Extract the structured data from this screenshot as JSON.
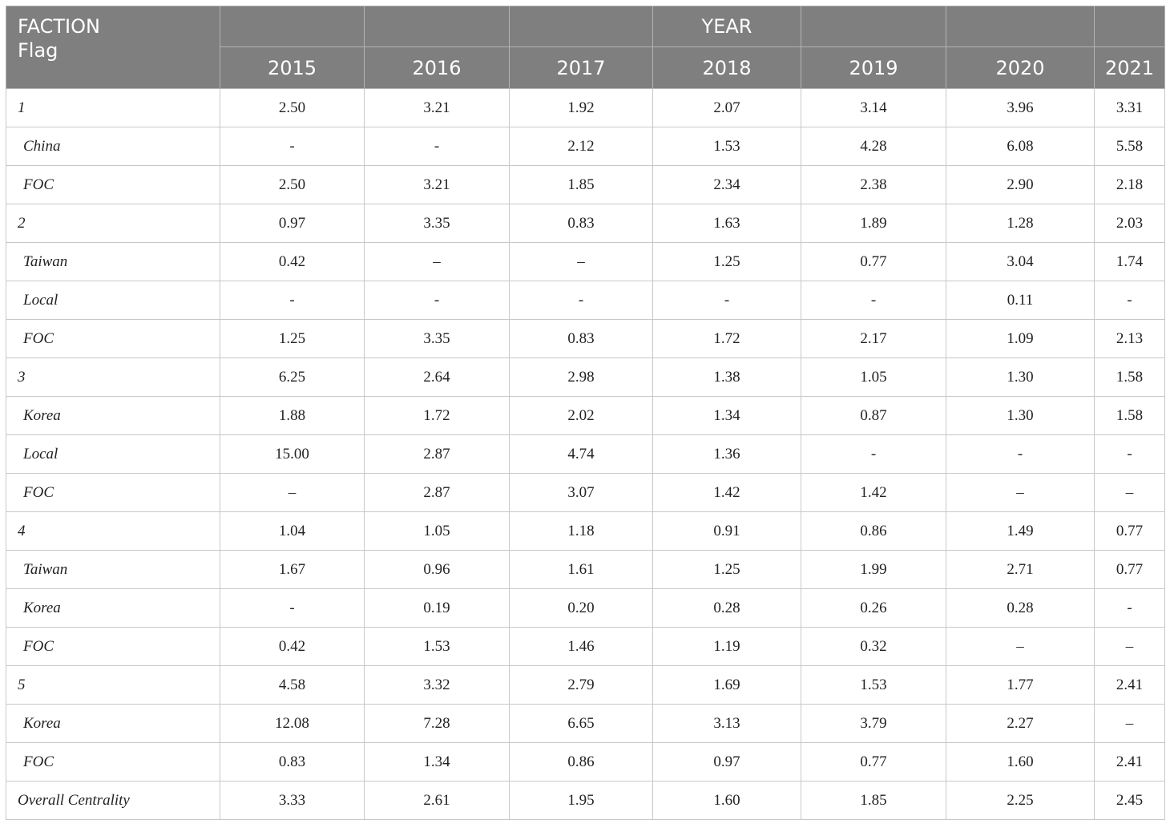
{
  "header": {
    "corner_line1": "FACTION",
    "corner_line2": "Flag",
    "group_label": "YEAR",
    "years": [
      "2015",
      "2016",
      "2017",
      "2018",
      "2019",
      "2020",
      "2021"
    ]
  },
  "rows": [
    {
      "label": "1",
      "type": "faction",
      "values": [
        "2.50",
        "3.21",
        "1.92",
        "2.07",
        "3.14",
        "3.96",
        "3.31"
      ]
    },
    {
      "label": "China",
      "type": "flag",
      "values": [
        "-",
        "-",
        "2.12",
        "1.53",
        "4.28",
        "6.08",
        "5.58"
      ]
    },
    {
      "label": "FOC",
      "type": "flag",
      "values": [
        "2.50",
        "3.21",
        "1.85",
        "2.34",
        "2.38",
        "2.90",
        "2.18"
      ]
    },
    {
      "label": "2",
      "type": "faction",
      "values": [
        "0.97",
        "3.35",
        "0.83",
        "1.63",
        "1.89",
        "1.28",
        "2.03"
      ]
    },
    {
      "label": "Taiwan",
      "type": "flag",
      "values": [
        "0.42",
        "–",
        "–",
        "1.25",
        "0.77",
        "3.04",
        "1.74"
      ]
    },
    {
      "label": "Local",
      "type": "flag",
      "values": [
        "-",
        "-",
        "-",
        "-",
        "-",
        "0.11",
        "-"
      ]
    },
    {
      "label": "FOC",
      "type": "flag",
      "values": [
        "1.25",
        "3.35",
        "0.83",
        "1.72",
        "2.17",
        "1.09",
        "2.13"
      ]
    },
    {
      "label": "3",
      "type": "faction",
      "values": [
        "6.25",
        "2.64",
        "2.98",
        "1.38",
        "1.05",
        "1.30",
        "1.58"
      ]
    },
    {
      "label": "Korea",
      "type": "flag",
      "values": [
        "1.88",
        "1.72",
        "2.02",
        "1.34",
        "0.87",
        "1.30",
        "1.58"
      ]
    },
    {
      "label": "Local",
      "type": "flag",
      "values": [
        "15.00",
        "2.87",
        "4.74",
        "1.36",
        "-",
        "-",
        "-"
      ]
    },
    {
      "label": "FOC",
      "type": "flag",
      "values": [
        "–",
        "2.87",
        "3.07",
        "1.42",
        "1.42",
        "–",
        "–"
      ]
    },
    {
      "label": "4",
      "type": "faction",
      "values": [
        "1.04",
        "1.05",
        "1.18",
        "0.91",
        "0.86",
        "1.49",
        "0.77"
      ]
    },
    {
      "label": "Taiwan",
      "type": "flag",
      "values": [
        "1.67",
        "0.96",
        "1.61",
        "1.25",
        "1.99",
        "2.71",
        "0.77"
      ]
    },
    {
      "label": "Korea",
      "type": "flag",
      "values": [
        "-",
        "0.19",
        "0.20",
        "0.28",
        "0.26",
        "0.28",
        "-"
      ]
    },
    {
      "label": "FOC",
      "type": "flag",
      "values": [
        "0.42",
        "1.53",
        "1.46",
        "1.19",
        "0.32",
        "–",
        "–"
      ]
    },
    {
      "label": "5",
      "type": "faction",
      "values": [
        "4.58",
        "3.32",
        "2.79",
        "1.69",
        "1.53",
        "1.77",
        "2.41"
      ]
    },
    {
      "label": "Korea",
      "type": "flag",
      "values": [
        "12.08",
        "7.28",
        "6.65",
        "3.13",
        "3.79",
        "2.27",
        "–"
      ]
    },
    {
      "label": "FOC",
      "type": "flag",
      "values": [
        "0.83",
        "1.34",
        "0.86",
        "0.97",
        "0.77",
        "1.60",
        "2.41"
      ]
    },
    {
      "label": "Overall Centrality",
      "type": "faction",
      "values": [
        "3.33",
        "2.61",
        "1.95",
        "1.60",
        "1.85",
        "2.25",
        "2.45"
      ]
    }
  ]
}
